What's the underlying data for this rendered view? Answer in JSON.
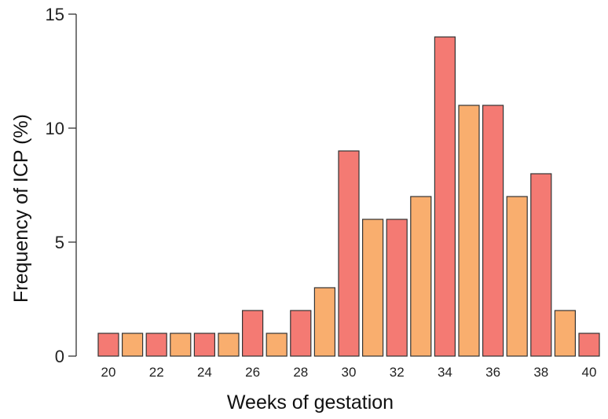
{
  "chart_data": {
    "type": "bar",
    "title": "",
    "xlabel": "Weeks of gestation",
    "ylabel": "Frequency of ICP (%)",
    "x": [
      20,
      21,
      22,
      23,
      24,
      25,
      26,
      27,
      28,
      29,
      30,
      31,
      32,
      33,
      34,
      35,
      36,
      37,
      38,
      39,
      40
    ],
    "values": [
      1,
      1,
      1,
      1,
      1,
      1,
      2,
      1,
      2,
      3,
      9,
      6,
      6,
      7,
      14,
      11,
      11,
      7,
      8,
      2,
      1
    ],
    "ylim": [
      0,
      15
    ],
    "yticks": [
      "0",
      "5",
      "10",
      "15"
    ],
    "xtick_labels": [
      "20",
      "22",
      "24",
      "26",
      "28",
      "30",
      "32",
      "34",
      "36",
      "38",
      "40"
    ],
    "colors": {
      "even_week": "#F47A73",
      "odd_week": "#F9AE6E"
    },
    "grid": false,
    "legend": "none"
  }
}
